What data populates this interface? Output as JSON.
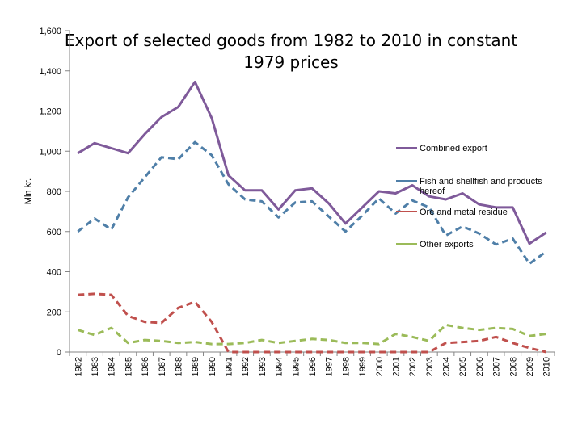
{
  "chart_data": {
    "type": "line",
    "title_lines": [
      "Export of selected goods from 1982 to 2010 in constant",
      "1979 prices"
    ],
    "xlabel": "",
    "ylabel": "Mln kr.",
    "ylim": [
      0,
      1600
    ],
    "yticks": [
      0,
      200,
      400,
      600,
      800,
      1000,
      1200,
      1400,
      1600
    ],
    "ytick_labels": [
      "0",
      "200",
      "400",
      "600",
      "800",
      "1,000",
      "1,200",
      "1,400",
      "1,600"
    ],
    "legend_position": "right",
    "categories": [
      "1982",
      "1983",
      "1984",
      "1985",
      "1986",
      "1987",
      "1988",
      "1989",
      "1990",
      "1991",
      "1992",
      "1993",
      "1994",
      "1995",
      "1996",
      "1997",
      "1998",
      "1999",
      "2000",
      "2001",
      "2002",
      "2003",
      "2004",
      "2005",
      "2006",
      "2007",
      "2008",
      "2009",
      "2010"
    ],
    "series": [
      {
        "name": "Combined export",
        "color": "#7F5A9A",
        "dash": "solid",
        "values": [
          990,
          1040,
          1015,
          990,
          1085,
          1170,
          1220,
          1345,
          1165,
          880,
          805,
          805,
          710,
          805,
          815,
          740,
          640,
          720,
          800,
          790,
          830,
          775,
          760,
          790,
          735,
          720,
          720,
          540,
          595
        ]
      },
      {
        "name": "Fish and shellfish and products hereof",
        "color": "#4F7FA8",
        "dash": "dashed",
        "values": [
          600,
          665,
          610,
          770,
          870,
          970,
          960,
          1045,
          980,
          835,
          760,
          750,
          670,
          745,
          750,
          675,
          600,
          680,
          765,
          690,
          755,
          720,
          580,
          625,
          590,
          535,
          565,
          440,
          500
        ]
      },
      {
        "name": "Ore and metal residue",
        "color": "#C0504D",
        "dash": "dashed",
        "values": [
          285,
          290,
          285,
          180,
          150,
          145,
          220,
          250,
          150,
          0,
          0,
          0,
          0,
          0,
          0,
          0,
          0,
          0,
          0,
          0,
          0,
          0,
          45,
          50,
          55,
          75,
          45,
          20,
          0
        ]
      },
      {
        "name": "Other exports",
        "color": "#9BBB59",
        "dash": "dashed",
        "values": [
          110,
          85,
          120,
          45,
          60,
          55,
          45,
          50,
          40,
          40,
          45,
          60,
          45,
          55,
          65,
          60,
          45,
          45,
          40,
          90,
          75,
          55,
          135,
          120,
          110,
          120,
          115,
          80,
          90
        ]
      }
    ]
  }
}
